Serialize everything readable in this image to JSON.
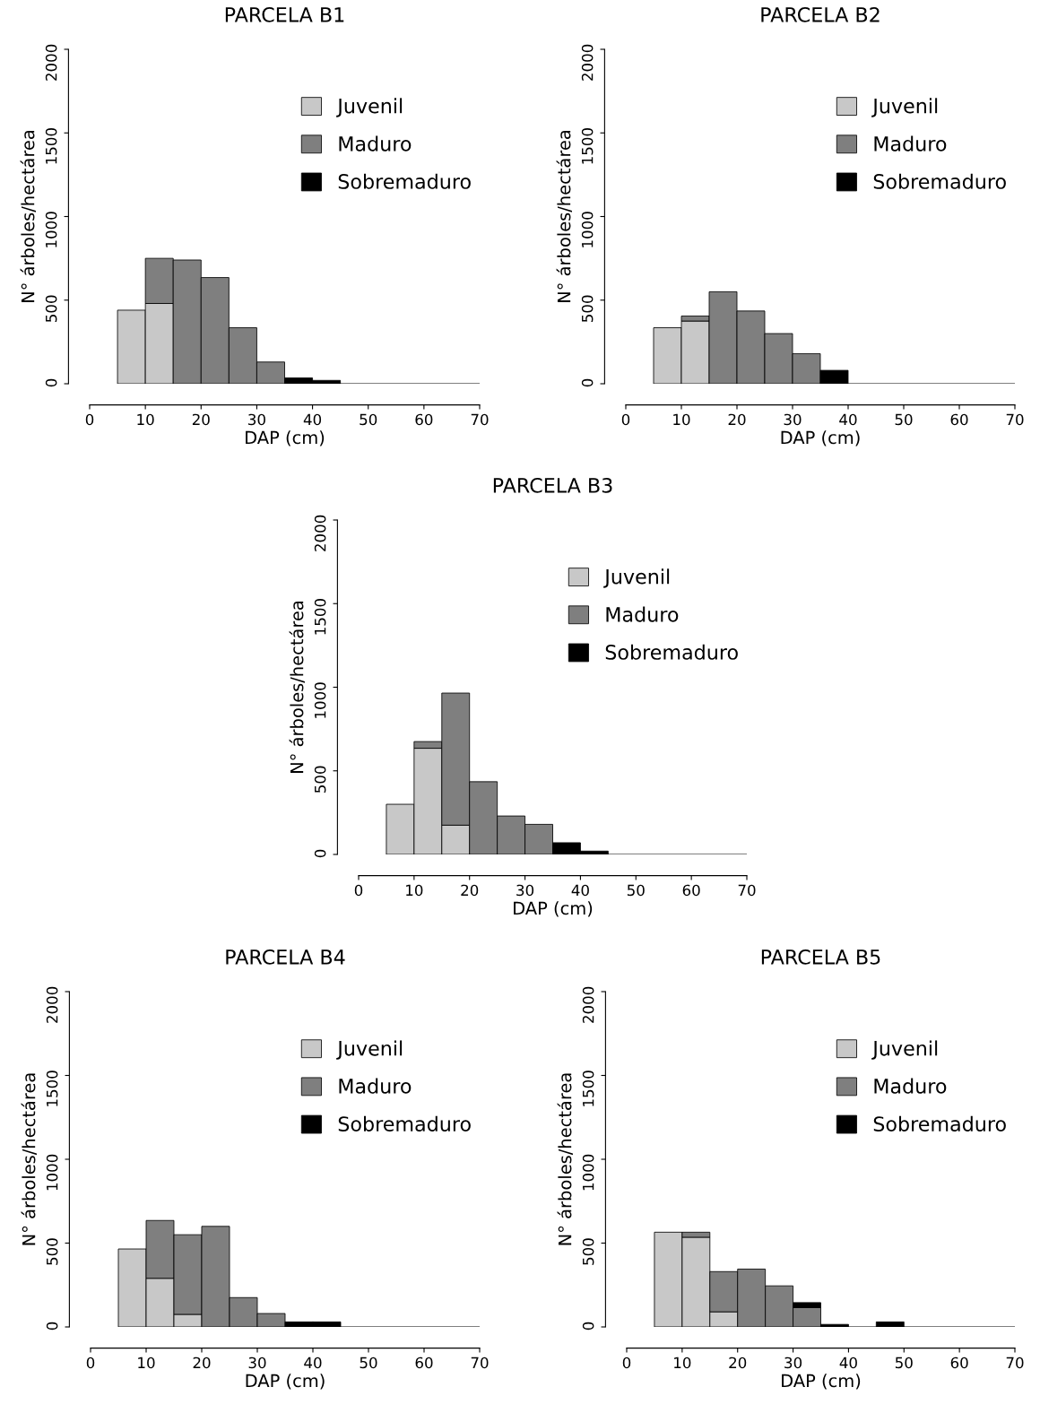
{
  "chart_data": [
    {
      "type": "bar",
      "title": "PARCELA B1",
      "xlabel": "DAP (cm)",
      "ylabel": "N° árboles/hectárea",
      "stacked": true,
      "x": [
        7.5,
        12.5,
        17.5,
        22.5,
        27.5,
        32.5,
        37.5,
        42.5,
        47.5,
        52.5,
        57.5,
        62.5,
        67.5
      ],
      "xlim": [
        0,
        70
      ],
      "xticks": [
        0,
        10,
        20,
        30,
        40,
        50,
        60,
        70
      ],
      "ylim": [
        0,
        2000
      ],
      "yticks": [
        0,
        500,
        1000,
        1500,
        2000
      ],
      "grid": false,
      "legend": "top right",
      "series": [
        {
          "name": "Juvenil",
          "color": "#c8c8c8",
          "values": [
            440,
            480,
            0,
            0,
            0,
            0,
            0,
            0,
            0,
            0,
            0,
            0,
            0
          ]
        },
        {
          "name": "Maduro",
          "color": "#7f7f7f",
          "values": [
            0,
            270,
            740,
            635,
            335,
            130,
            0,
            0,
            0,
            0,
            0,
            0,
            0
          ]
        },
        {
          "name": "Sobremaduro",
          "color": "#000000",
          "values": [
            0,
            0,
            0,
            0,
            0,
            0,
            35,
            20,
            0,
            0,
            0,
            0,
            0
          ]
        }
      ]
    },
    {
      "type": "bar",
      "title": "PARCELA B2",
      "xlabel": "DAP (cm)",
      "ylabel": "N° árboles/hectárea",
      "stacked": true,
      "x": [
        7.5,
        12.5,
        17.5,
        22.5,
        27.5,
        32.5,
        37.5,
        42.5,
        47.5,
        52.5,
        57.5,
        62.5,
        67.5
      ],
      "xlim": [
        0,
        70
      ],
      "xticks": [
        0,
        10,
        20,
        30,
        40,
        50,
        60,
        70
      ],
      "ylim": [
        0,
        2000
      ],
      "yticks": [
        0,
        500,
        1000,
        1500,
        2000
      ],
      "grid": false,
      "legend": "top right",
      "series": [
        {
          "name": "Juvenil",
          "color": "#c8c8c8",
          "values": [
            335,
            375,
            0,
            0,
            0,
            0,
            0,
            0,
            0,
            0,
            0,
            0,
            0
          ]
        },
        {
          "name": "Maduro",
          "color": "#7f7f7f",
          "values": [
            0,
            30,
            550,
            435,
            300,
            180,
            0,
            0,
            0,
            0,
            0,
            0,
            0
          ]
        },
        {
          "name": "Sobremaduro",
          "color": "#000000",
          "values": [
            0,
            0,
            0,
            0,
            0,
            0,
            80,
            0,
            0,
            0,
            0,
            0,
            0
          ]
        }
      ]
    },
    {
      "type": "bar",
      "title": "PARCELA B3",
      "xlabel": "DAP (cm)",
      "ylabel": "N° árboles/hectárea",
      "stacked": true,
      "x": [
        7.5,
        12.5,
        17.5,
        22.5,
        27.5,
        32.5,
        37.5,
        42.5,
        47.5,
        52.5,
        57.5,
        62.5,
        67.5
      ],
      "xlim": [
        0,
        70
      ],
      "xticks": [
        0,
        10,
        20,
        30,
        40,
        50,
        60,
        70
      ],
      "ylim": [
        0,
        2000
      ],
      "yticks": [
        0,
        500,
        1000,
        1500,
        2000
      ],
      "grid": false,
      "legend": "top right",
      "series": [
        {
          "name": "Juvenil",
          "color": "#c8c8c8",
          "values": [
            300,
            635,
            175,
            0,
            0,
            0,
            0,
            0,
            0,
            0,
            0,
            0,
            0
          ]
        },
        {
          "name": "Maduro",
          "color": "#7f7f7f",
          "values": [
            0,
            40,
            790,
            435,
            230,
            180,
            0,
            0,
            0,
            0,
            0,
            0,
            0
          ]
        },
        {
          "name": "Sobremaduro",
          "color": "#000000",
          "values": [
            0,
            0,
            0,
            0,
            0,
            0,
            70,
            20,
            0,
            0,
            0,
            0,
            0
          ]
        }
      ]
    },
    {
      "type": "bar",
      "title": "PARCELA B4",
      "xlabel": "DAP (cm)",
      "ylabel": "N° árboles/hectárea",
      "stacked": true,
      "x": [
        7.5,
        12.5,
        17.5,
        22.5,
        27.5,
        32.5,
        37.5,
        42.5,
        47.5,
        52.5,
        57.5,
        62.5,
        67.5
      ],
      "xlim": [
        0,
        70
      ],
      "xticks": [
        0,
        10,
        20,
        30,
        40,
        50,
        60,
        70
      ],
      "ylim": [
        0,
        2000
      ],
      "yticks": [
        0,
        500,
        1000,
        1500,
        2000
      ],
      "grid": false,
      "legend": "top right",
      "series": [
        {
          "name": "Juvenil",
          "color": "#c8c8c8",
          "values": [
            465,
            290,
            75,
            0,
            0,
            0,
            0,
            0,
            0,
            0,
            0,
            0,
            0
          ]
        },
        {
          "name": "Maduro",
          "color": "#7f7f7f",
          "values": [
            0,
            345,
            475,
            600,
            175,
            80,
            0,
            0,
            0,
            0,
            0,
            0,
            0
          ]
        },
        {
          "name": "Sobremaduro",
          "color": "#000000",
          "values": [
            0,
            0,
            0,
            0,
            0,
            0,
            30,
            30,
            0,
            0,
            0,
            0,
            0
          ]
        }
      ]
    },
    {
      "type": "bar",
      "title": "PARCELA B5",
      "xlabel": "DAP (cm)",
      "ylabel": "N° árboles/hectárea",
      "stacked": true,
      "x": [
        7.5,
        12.5,
        17.5,
        22.5,
        27.5,
        32.5,
        37.5,
        42.5,
        47.5,
        52.5,
        57.5,
        62.5,
        67.5
      ],
      "xlim": [
        0,
        70
      ],
      "xticks": [
        0,
        10,
        20,
        30,
        40,
        50,
        60,
        70
      ],
      "ylim": [
        0,
        2000
      ],
      "yticks": [
        0,
        500,
        1000,
        1500,
        2000
      ],
      "grid": false,
      "legend": "top right",
      "series": [
        {
          "name": "Juvenil",
          "color": "#c8c8c8",
          "values": [
            565,
            535,
            90,
            0,
            0,
            0,
            0,
            0,
            0,
            0,
            0,
            0,
            0
          ]
        },
        {
          "name": "Maduro",
          "color": "#7f7f7f",
          "values": [
            0,
            30,
            240,
            345,
            245,
            115,
            0,
            0,
            0,
            0,
            0,
            0,
            0
          ]
        },
        {
          "name": "Sobremaduro",
          "color": "#000000",
          "values": [
            0,
            0,
            0,
            0,
            0,
            30,
            15,
            0,
            30,
            0,
            0,
            0,
            0
          ]
        }
      ]
    }
  ]
}
